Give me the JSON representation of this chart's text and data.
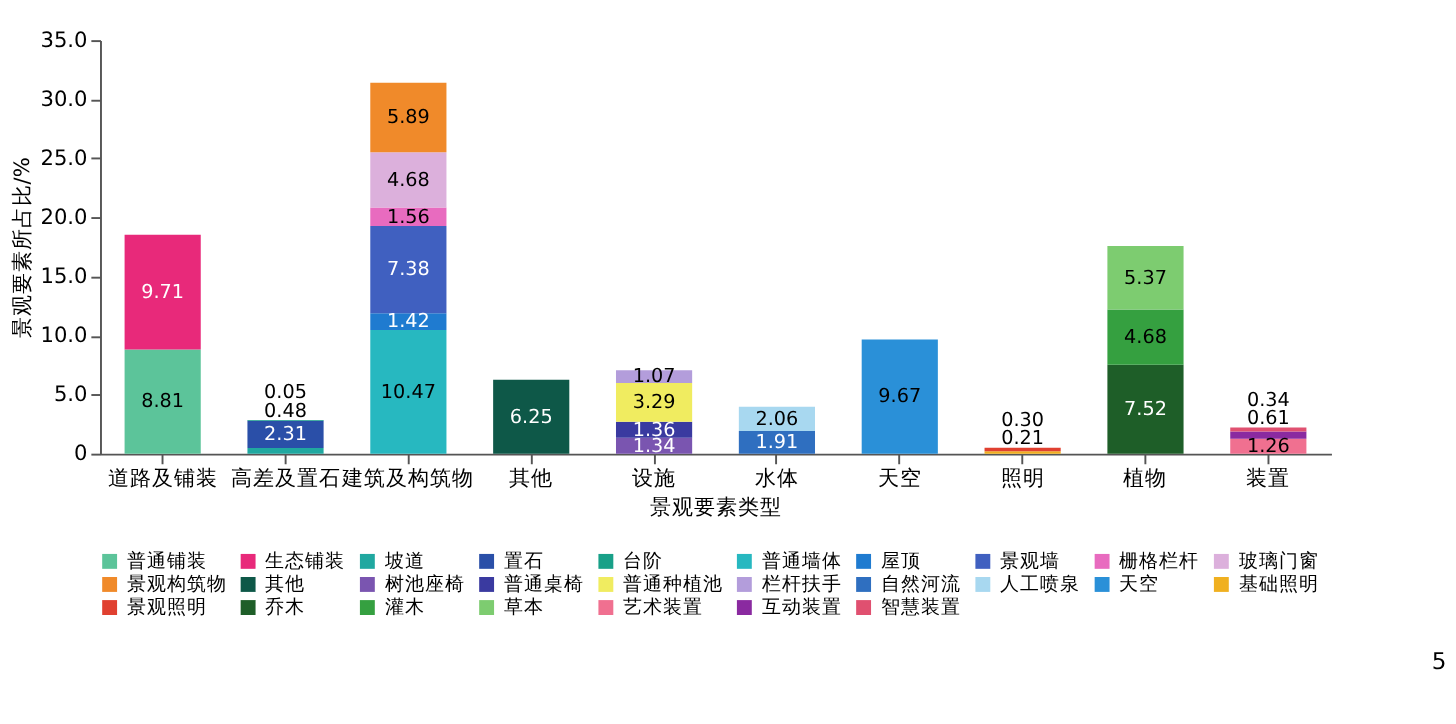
{
  "chart_data": {
    "type": "bar",
    "stacked": true,
    "xlabel": "景观要素类型",
    "ylabel": "景观要素所占比/%",
    "categories": [
      "道路及铺装",
      "高差及置石",
      "建筑及构筑物",
      "其他",
      "设施",
      "水体",
      "天空",
      "照明",
      "植物",
      "装置"
    ],
    "ylim": [
      0,
      35
    ],
    "yticks": [
      0,
      {
        "value": 5,
        "label": "5.0"
      },
      {
        "value": 10,
        "label": "10.0"
      },
      {
        "value": 15,
        "label": "15.0"
      },
      {
        "value": 20,
        "label": "20.0"
      },
      {
        "value": 25,
        "label": "25.0"
      },
      {
        "value": 30,
        "label": "30.0"
      },
      {
        "value": 35,
        "label": "35.0"
      }
    ],
    "grid": false,
    "legend": "bottom",
    "data_labels": true,
    "annotations": [
      "5"
    ],
    "series": [
      {
        "name": "普通铺装",
        "color": "#5cc49a",
        "values": [
          8.81,
          null,
          null,
          null,
          null,
          null,
          null,
          null,
          null,
          null
        ]
      },
      {
        "name": "生态铺装",
        "color": "#e8297a",
        "values": [
          9.71,
          null,
          null,
          null,
          null,
          null,
          null,
          null,
          null,
          null
        ]
      },
      {
        "name": "坡道",
        "color": "#20a8a0",
        "values": [
          null,
          0.48,
          null,
          null,
          null,
          null,
          null,
          null,
          null,
          null
        ]
      },
      {
        "name": "置石",
        "color": "#2a4fa8",
        "values": [
          null,
          2.31,
          null,
          null,
          null,
          null,
          null,
          null,
          null,
          null
        ]
      },
      {
        "name": "台阶",
        "color": "#18a088",
        "values": [
          null,
          0.05,
          null,
          null,
          null,
          null,
          null,
          null,
          null,
          null
        ]
      },
      {
        "name": "普通墙体",
        "color": "#27b8c0",
        "values": [
          null,
          null,
          10.47,
          null,
          null,
          null,
          null,
          null,
          null,
          null
        ]
      },
      {
        "name": "屋顶",
        "color": "#1f7bd0",
        "values": [
          null,
          null,
          1.42,
          null,
          null,
          null,
          null,
          null,
          null,
          null
        ]
      },
      {
        "name": "景观墙",
        "color": "#4060c0",
        "values": [
          null,
          null,
          7.38,
          null,
          null,
          null,
          null,
          null,
          null,
          null
        ]
      },
      {
        "name": "栅格栏杆",
        "color": "#e86bbf",
        "values": [
          null,
          null,
          1.56,
          null,
          null,
          null,
          null,
          null,
          null,
          null
        ]
      },
      {
        "name": "玻璃门窗",
        "color": "#dcb0dc",
        "values": [
          null,
          null,
          4.68,
          null,
          null,
          null,
          null,
          null,
          null,
          null
        ]
      },
      {
        "name": "景观构筑物",
        "color": "#f08a2a",
        "values": [
          null,
          null,
          5.89,
          null,
          null,
          null,
          null,
          null,
          null,
          null
        ]
      },
      {
        "name": "其他",
        "color": "#0e5848",
        "values": [
          null,
          null,
          null,
          6.25,
          null,
          null,
          null,
          null,
          null,
          null
        ]
      },
      {
        "name": "树池座椅",
        "color": "#7a55b0",
        "values": [
          null,
          null,
          null,
          null,
          1.34,
          null,
          null,
          null,
          null,
          null
        ]
      },
      {
        "name": "普通桌椅",
        "color": "#3a3aa0",
        "values": [
          null,
          null,
          null,
          null,
          1.36,
          null,
          null,
          null,
          null,
          null
        ]
      },
      {
        "name": "普通种植池",
        "color": "#f0ec60",
        "values": [
          null,
          null,
          null,
          null,
          3.29,
          null,
          null,
          null,
          null,
          null
        ]
      },
      {
        "name": "栏杆扶手",
        "color": "#b39ddb",
        "values": [
          null,
          null,
          null,
          null,
          1.07,
          null,
          null,
          null,
          null,
          null
        ]
      },
      {
        "name": "自然河流",
        "color": "#2f6fc0",
        "values": [
          null,
          null,
          null,
          null,
          null,
          1.91,
          null,
          null,
          null,
          null
        ]
      },
      {
        "name": "人工喷泉",
        "color": "#a8d8f0",
        "values": [
          null,
          null,
          null,
          null,
          null,
          2.06,
          null,
          null,
          null,
          null
        ]
      },
      {
        "name": "天空",
        "color": "#2a90d8",
        "values": [
          null,
          null,
          null,
          null,
          null,
          null,
          9.67,
          null,
          null,
          null
        ]
      },
      {
        "name": "基础照明",
        "color": "#f0b020",
        "values": [
          null,
          null,
          null,
          null,
          null,
          null,
          null,
          0.21,
          null,
          null
        ]
      },
      {
        "name": "景观照明",
        "color": "#e04030",
        "values": [
          null,
          null,
          null,
          null,
          null,
          null,
          null,
          0.3,
          null,
          null
        ],
        "value_labels": [
          null,
          null,
          null,
          null,
          null,
          null,
          null,
          "0.30",
          null,
          null
        ]
      },
      {
        "name": "乔木",
        "color": "#1e5e28",
        "values": [
          null,
          null,
          null,
          null,
          null,
          null,
          null,
          null,
          7.52,
          null
        ]
      },
      {
        "name": "灌木",
        "color": "#35a040",
        "values": [
          null,
          null,
          null,
          null,
          null,
          null,
          null,
          null,
          4.68,
          null
        ]
      },
      {
        "name": "草本",
        "color": "#7dcc70",
        "values": [
          null,
          null,
          null,
          null,
          null,
          null,
          null,
          null,
          5.37,
          null
        ]
      },
      {
        "name": "艺术装置",
        "color": "#f07090",
        "values": [
          null,
          null,
          null,
          null,
          null,
          null,
          null,
          null,
          null,
          1.26
        ]
      },
      {
        "name": "互动装置",
        "color": "#8a2aa0",
        "values": [
          null,
          null,
          null,
          null,
          null,
          null,
          null,
          null,
          null,
          0.61
        ]
      },
      {
        "name": "智慧装置",
        "color": "#e05070",
        "values": [
          null,
          null,
          null,
          null,
          null,
          null,
          null,
          null,
          null,
          0.34
        ]
      }
    ]
  }
}
